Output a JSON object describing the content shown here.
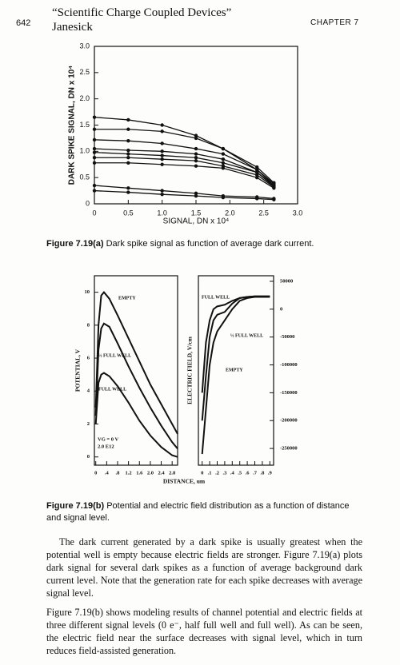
{
  "header": {
    "page_number": "642",
    "book_title": "“Scientific Charge Coupled Devices”",
    "author": "Janesick",
    "chapter": "CHAPTER 7"
  },
  "chart_data": [
    {
      "type": "line",
      "ylabel": "DARK SPIKE SIGNAL, DN x 10⁴",
      "xlabel": "SIGNAL, DN x 10⁴",
      "x": [
        0,
        0.5,
        1.0,
        1.5,
        1.9,
        2.4,
        2.65
      ],
      "series": [
        {
          "color": "#111111",
          "values": [
            1.65,
            1.6,
            1.5,
            1.3,
            1.05,
            0.7,
            0.4
          ]
        },
        {
          "color": "#111111",
          "values": [
            1.42,
            1.42,
            1.38,
            1.25,
            1.05,
            0.65,
            0.38
          ]
        },
        {
          "color": "#111111",
          "values": [
            1.22,
            1.2,
            1.15,
            1.05,
            0.95,
            0.65,
            0.35
          ]
        },
        {
          "color": "#111111",
          "values": [
            1.05,
            1.02,
            1.0,
            0.95,
            0.85,
            0.6,
            0.35
          ]
        },
        {
          "color": "#111111",
          "values": [
            0.98,
            0.95,
            0.92,
            0.88,
            0.78,
            0.6,
            0.33
          ]
        },
        {
          "color": "#111111",
          "values": [
            0.88,
            0.88,
            0.85,
            0.82,
            0.72,
            0.55,
            0.32
          ]
        },
        {
          "color": "#111111",
          "values": [
            0.78,
            0.78,
            0.75,
            0.72,
            0.68,
            0.5,
            0.3
          ]
        },
        {
          "color": "#111111",
          "values": [
            0.35,
            0.3,
            0.25,
            0.2,
            0.15,
            0.13,
            0.1
          ]
        },
        {
          "color": "#111111",
          "values": [
            0.25,
            0.22,
            0.18,
            0.15,
            0.12,
            0.1,
            0.08
          ]
        }
      ],
      "xlim": [
        0,
        3.0
      ],
      "ylim": [
        0,
        3.0
      ],
      "xticks": [
        0,
        0.5,
        {
          "value": 1,
          "label": "1.0"
        },
        1.5,
        {
          "value": 2,
          "label": "2.0"
        },
        2.5,
        {
          "value": 3,
          "label": "3.0"
        }
      ],
      "yticks": [
        0,
        0.5,
        {
          "value": 1,
          "label": "1.0"
        },
        1.5,
        {
          "value": 2,
          "label": "2.0"
        },
        2.5,
        {
          "value": 3,
          "label": "3.0"
        }
      ],
      "markers": true
    },
    {
      "type": "line",
      "ylabel": "POTENTIAL, V",
      "xlabel": "DISTANCE, um",
      "x": [
        0,
        0.1,
        0.2,
        0.3,
        0.5,
        0.8,
        1.2,
        1.6,
        2.0,
        2.4,
        2.8,
        3.0
      ],
      "series": [
        {
          "name": "EMPTY",
          "color": "#111111",
          "values": [
            3,
            8,
            9.8,
            10,
            9.6,
            8.6,
            7.2,
            5.8,
            4.4,
            3.2,
            2.0,
            1.4
          ]
        },
        {
          "name": "½ FULL WELL",
          "color": "#111111",
          "values": [
            2.5,
            6.5,
            7.8,
            8.1,
            7.9,
            6.9,
            5.5,
            4.2,
            3.0,
            1.9,
            0.9,
            0.5
          ]
        },
        {
          "name": "FULL WELL",
          "color": "#111111",
          "values": [
            2,
            4.5,
            5.0,
            5.1,
            4.9,
            4.3,
            3.3,
            2.2,
            1.3,
            0.6,
            0.1,
            0
          ]
        }
      ],
      "annotations": [
        "VG = 0 V",
        "2.0 E12"
      ],
      "xlim": [
        -0.05,
        3.0
      ],
      "ylim": [
        -0.5,
        11
      ],
      "xticks": [
        0,
        {
          "value": 0.4,
          "label": ".4"
        },
        {
          "value": 0.8,
          "label": ".8"
        },
        1.2,
        1.6,
        {
          "value": 2,
          "label": "2.0"
        },
        2.4,
        2.8
      ],
      "yticks": [
        0,
        2,
        4,
        6,
        8,
        10
      ],
      "markers": false
    },
    {
      "type": "line",
      "ylabel": "ELECTRIC FIELD, V/cm",
      "x": [
        0,
        0.05,
        0.1,
        0.15,
        0.2,
        0.3,
        0.4,
        0.5,
        0.6,
        0.7,
        0.9
      ],
      "series": [
        {
          "name": "FULL WELL",
          "color": "#111111",
          "values": [
            -150000,
            -60000,
            -20000,
            0,
            5000,
            8000,
            15000,
            20000,
            22000,
            23000,
            23000
          ]
        },
        {
          "name": "½ FULL WELL",
          "color": "#111111",
          "values": [
            -200000,
            -120000,
            -50000,
            -20000,
            -10000,
            -5000,
            10000,
            20000,
            22000,
            23000,
            23000
          ]
        },
        {
          "name": "EMPTY",
          "color": "#111111",
          "values": [
            -260000,
            -180000,
            -100000,
            -60000,
            -40000,
            -20000,
            0,
            15000,
            20000,
            22000,
            22000
          ]
        }
      ],
      "xlim": [
        -0.05,
        0.95
      ],
      "ylim": [
        -280000,
        60000
      ],
      "xticks": [
        0,
        {
          "value": 0.1,
          "label": ".1"
        },
        {
          "value": 0.2,
          "label": ".2"
        },
        {
          "value": 0.3,
          "label": ".3"
        },
        {
          "value": 0.4,
          "label": ".4"
        },
        {
          "value": 0.5,
          "label": ".5"
        },
        {
          "value": 0.6,
          "label": ".6"
        },
        {
          "value": 0.7,
          "label": ".7"
        },
        {
          "value": 0.8,
          "label": ".8"
        },
        {
          "value": 0.9,
          "label": ".9"
        }
      ],
      "yticks": [
        50000,
        0,
        -50000,
        -100000,
        -150000,
        -200000,
        -250000
      ],
      "markers": false
    }
  ],
  "captions": {
    "figure_a": {
      "label": "Figure 7.19(a)",
      "text": "Dark spike signal as function of average dark current."
    },
    "figure_b": {
      "label": "Figure 7.19(b)",
      "text": "Potential and electric field distribution as a function of distance and signal level."
    }
  },
  "paragraphs": [
    "The dark current generated by a dark spike is usually greatest when the potential well is empty because electric fields are stronger. Figure 7.19(a) plots dark signal for several dark spikes as a function of average background dark current level. Note that the generation rate for each spike decreases with average signal level.",
    "Figure 7.19(b) shows modeling results of channel potential and electric fields at three different signal levels (0 e⁻, half full well and full well). As can be seen, the electric field near the surface decreases with signal level, which in turn reduces field-assisted generation."
  ]
}
